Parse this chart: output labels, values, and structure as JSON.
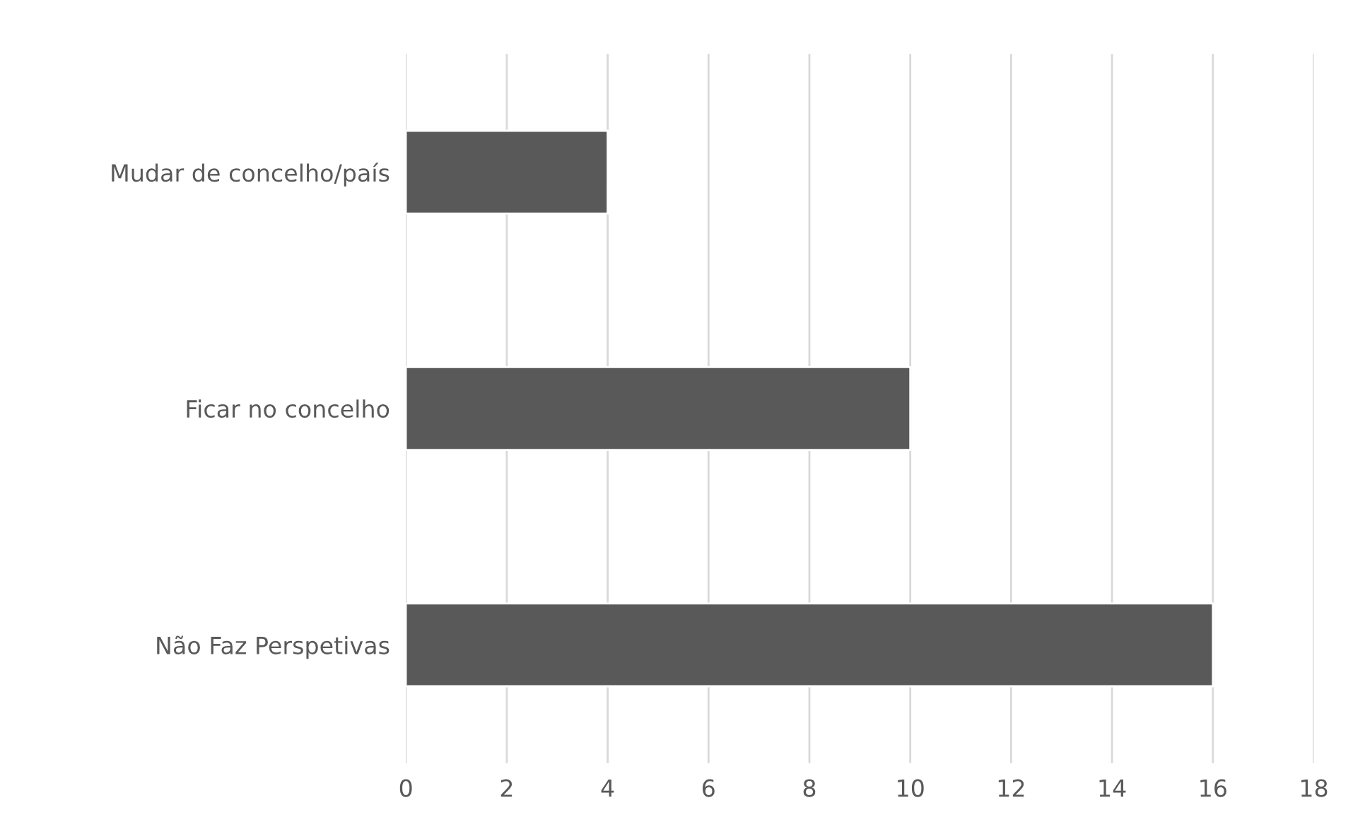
{
  "chart_data": {
    "type": "bar",
    "orientation": "horizontal",
    "categories": [
      "Mudar de concelho/país",
      "Ficar no concelho",
      "Não Faz Perspetivas"
    ],
    "values": [
      4,
      10,
      16
    ],
    "color": "#595959",
    "xlim": [
      0,
      18
    ],
    "xticks": [
      0,
      2,
      4,
      6,
      8,
      10,
      12,
      14,
      16,
      18
    ],
    "grid": "x",
    "legend": false
  }
}
